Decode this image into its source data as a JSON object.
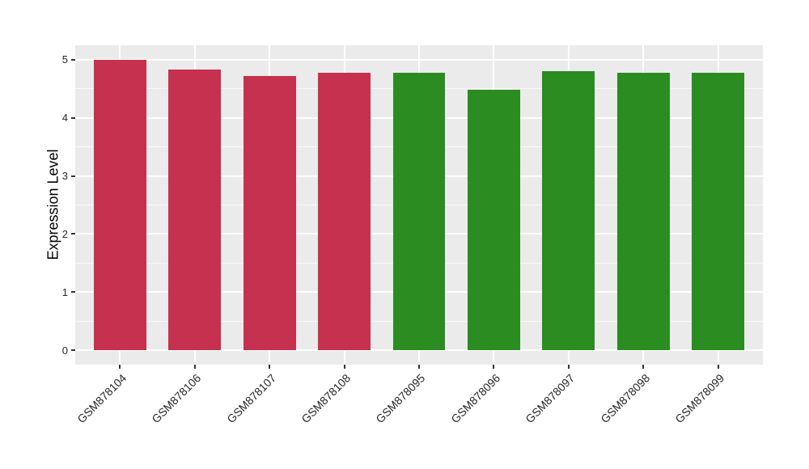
{
  "figure": {
    "background_color": "#ffffff",
    "panel_background_color": "#ebebeb",
    "gridline_color": "#ffffff",
    "tick_mark_color": "#333333",
    "axis_text_color": "#262626"
  },
  "chart_data": {
    "type": "bar",
    "title": "",
    "xlabel": "",
    "ylabel": "Expression Level",
    "categories": [
      "GSM878104",
      "GSM878106",
      "GSM878107",
      "GSM878108",
      "GSM878095",
      "GSM878096",
      "GSM878097",
      "GSM878098",
      "GSM878099"
    ],
    "values": [
      5.0,
      4.83,
      4.72,
      4.78,
      4.78,
      4.49,
      4.81,
      4.78,
      4.78
    ],
    "bar_groups": [
      "group1",
      "group1",
      "group1",
      "group1",
      "group2",
      "group2",
      "group2",
      "group2",
      "group2"
    ],
    "group_colors": {
      "group1": "#c5314e",
      "group2": "#2b8c22"
    },
    "ytick_labels": [
      "0",
      "1",
      "2",
      "3",
      "4",
      "5"
    ],
    "yticks": [
      0,
      1,
      2,
      3,
      4,
      5
    ],
    "yminor_ticks": [
      0.5,
      1.5,
      2.5,
      3.5,
      4.5
    ],
    "ylim": [
      -0.25,
      5.25
    ],
    "x_label_rotation_deg": 45,
    "bar_relative_width": 0.7,
    "grid": {
      "horizontal_major": true,
      "horizontal_minor": true,
      "vertical_major_at_categories": true,
      "vertical_minor": false
    },
    "legend": "none"
  }
}
